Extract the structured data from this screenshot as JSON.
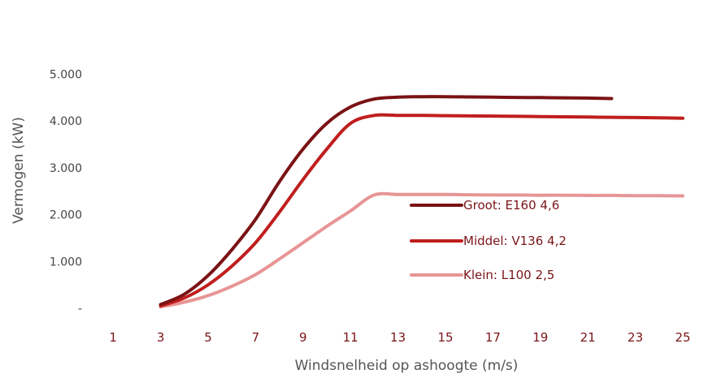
{
  "chart_data": {
    "type": "line",
    "title": "",
    "xlabel": "Windsnelheid op ashoogte (m/s)",
    "ylabel": "Vermogen (kW)",
    "xlim": [
      0,
      25.3
    ],
    "ylim": [
      0,
      5000
    ],
    "x_ticks": [
      1,
      3,
      5,
      7,
      9,
      11,
      13,
      15,
      17,
      19,
      21,
      23,
      25
    ],
    "x_tick_labels": [
      "1",
      "3",
      "5",
      "7",
      "9",
      "11",
      "13",
      "15",
      "17",
      "19",
      "21",
      "23",
      "25"
    ],
    "y_ticks": [
      0,
      1000,
      2000,
      3000,
      4000,
      5000
    ],
    "y_tick_labels": [
      "-",
      "1.000",
      "2.000",
      "3.000",
      "4.000",
      "5.000"
    ],
    "grid": false,
    "legend_position": "right-center",
    "series": [
      {
        "name": "Groot: E160 4,6",
        "color": "#7b1214",
        "x": [
          3,
          4,
          5,
          6,
          7,
          8,
          9,
          10,
          11,
          12,
          13,
          14,
          15,
          16,
          17,
          18,
          19,
          20,
          21,
          22
        ],
        "y": [
          80,
          300,
          700,
          1250,
          1900,
          2700,
          3400,
          3950,
          4300,
          4470,
          4510,
          4520,
          4520,
          4515,
          4510,
          4505,
          4500,
          4495,
          4490,
          4480
        ]
      },
      {
        "name": "Middel: V136 4,2",
        "color": "#c01e1e",
        "x": [
          3,
          4,
          5,
          6,
          7,
          8,
          9,
          10,
          11,
          12,
          13,
          14,
          15,
          16,
          17,
          18,
          19,
          20,
          21,
          22,
          23,
          24,
          25
        ],
        "y": [
          50,
          220,
          500,
          900,
          1400,
          2050,
          2750,
          3400,
          3950,
          4120,
          4120,
          4120,
          4115,
          4110,
          4105,
          4100,
          4095,
          4090,
          4085,
          4080,
          4075,
          4070,
          4060
        ]
      },
      {
        "name": "Klein: L100 2,5",
        "color": "#e89595",
        "x": [
          3,
          4,
          5,
          6,
          7,
          8,
          9,
          10,
          11,
          12,
          13,
          14,
          15,
          16,
          17,
          18,
          19,
          20,
          21,
          22,
          23,
          24,
          25
        ],
        "y": [
          30,
          130,
          270,
          470,
          720,
          1050,
          1400,
          1750,
          2080,
          2420,
          2430,
          2430,
          2430,
          2425,
          2420,
          2420,
          2415,
          2415,
          2410,
          2410,
          2405,
          2405,
          2400
        ]
      }
    ]
  }
}
